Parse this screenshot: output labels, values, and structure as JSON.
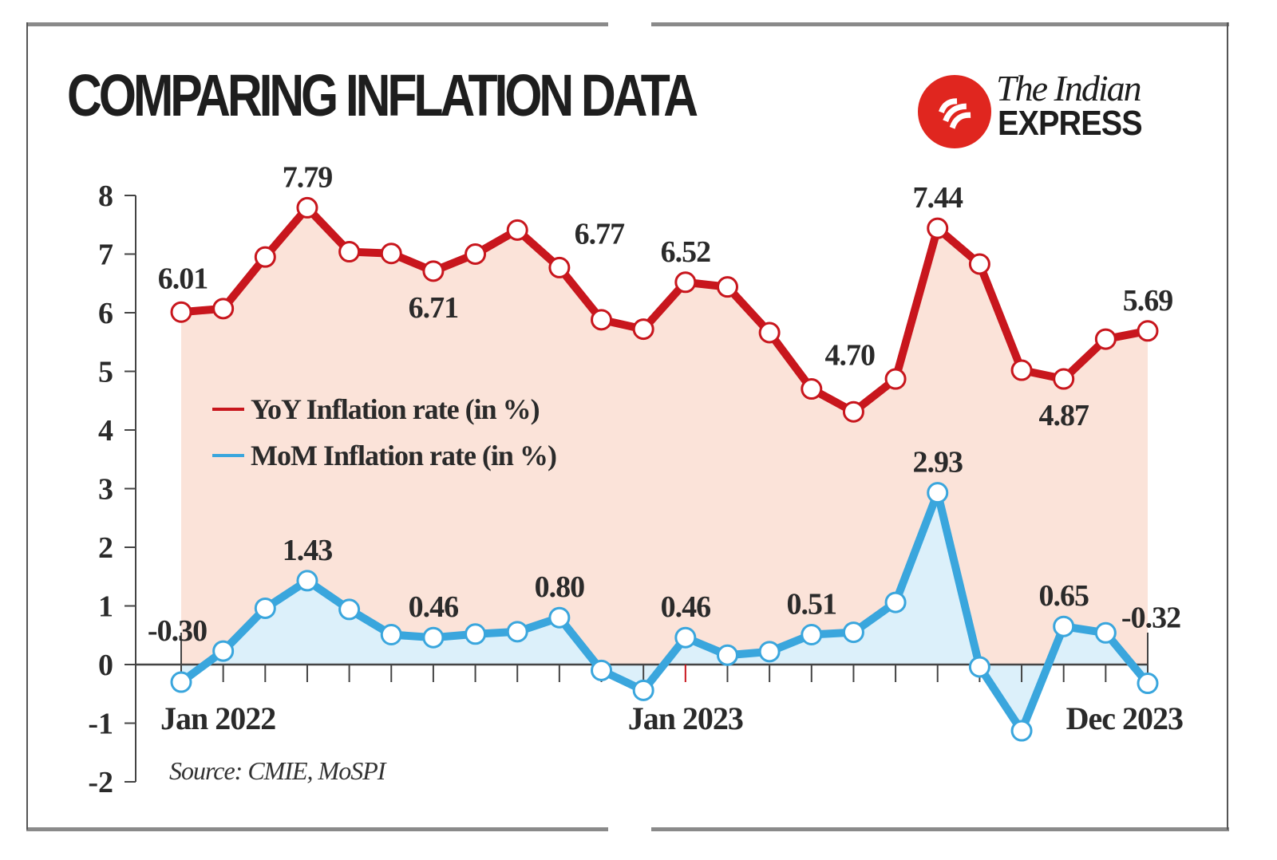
{
  "header": {
    "title": "COMPARING INFLATION DATA",
    "brand_line1": "The Indian",
    "brand_line2": "EXPRESS",
    "brand_icon": "indian-express-logo-icon"
  },
  "footer": {
    "source": "Source: CMIE, MoSPI"
  },
  "colors": {
    "yoy_line": "#c8161d",
    "yoy_fill": "#fbe3d9",
    "mom_line": "#3aa6dd",
    "mom_fill": "#dcf0fa",
    "axis": "#444444",
    "brand_red": "#e0261f"
  },
  "chart_data": {
    "type": "line",
    "title": "COMPARING INFLATION DATA",
    "xlabel": "",
    "ylabel": "",
    "ylim": [
      -2,
      8
    ],
    "yticks": [
      8,
      7,
      6,
      5,
      4,
      3,
      2,
      1,
      0,
      -1,
      -2
    ],
    "grid": false,
    "legend_position": "center-left",
    "x": [
      "Jan 2022",
      "Feb 2022",
      "Mar 2022",
      "Apr 2022",
      "May 2022",
      "Jun 2022",
      "Jul 2022",
      "Aug 2022",
      "Sep 2022",
      "Oct 2022",
      "Nov 2022",
      "Dec 2022",
      "Jan 2023",
      "Feb 2023",
      "Mar 2023",
      "Apr 2023",
      "May 2023",
      "Jun 2023",
      "Jul 2023",
      "Aug 2023",
      "Sep 2023",
      "Oct 2023",
      "Nov 2023",
      "Dec 2023"
    ],
    "x_tick_labels": [
      {
        "index": 0,
        "label": "Jan 2022"
      },
      {
        "index": 12,
        "label": "Jan 2023"
      },
      {
        "index": 23,
        "label": "Dec 2023"
      }
    ],
    "series": [
      {
        "name": "YoY Inflation rate (in %)",
        "values": [
          6.01,
          6.07,
          6.95,
          7.79,
          7.04,
          7.01,
          6.71,
          7.0,
          7.41,
          6.77,
          5.88,
          5.72,
          6.52,
          6.44,
          5.66,
          4.7,
          4.31,
          4.87,
          7.44,
          6.83,
          5.02,
          4.87,
          5.55,
          5.69
        ],
        "labels": [
          {
            "index": 0,
            "text": "6.01",
            "pos": "above"
          },
          {
            "index": 3,
            "text": "7.79",
            "pos": "above"
          },
          {
            "index": 6,
            "text": "6.71",
            "pos": "below"
          },
          {
            "index": 9,
            "text": "6.77",
            "pos": "above-right"
          },
          {
            "index": 12,
            "text": "6.52",
            "pos": "above"
          },
          {
            "index": 15,
            "text": "4.70",
            "pos": "above-right"
          },
          {
            "index": 18,
            "text": "7.44",
            "pos": "above"
          },
          {
            "index": 21,
            "text": "4.87",
            "pos": "below"
          },
          {
            "index": 23,
            "text": "5.69",
            "pos": "above"
          }
        ]
      },
      {
        "name": "MoM Inflation rate (in %)",
        "values": [
          -0.3,
          0.23,
          0.96,
          1.43,
          0.94,
          0.51,
          0.46,
          0.52,
          0.56,
          0.8,
          -0.1,
          -0.44,
          0.46,
          0.16,
          0.22,
          0.51,
          0.55,
          1.06,
          2.93,
          -0.04,
          -1.13,
          0.65,
          0.54,
          -0.32
        ],
        "labels": [
          {
            "index": 0,
            "text": "-0.30",
            "pos": "above"
          },
          {
            "index": 3,
            "text": "1.43",
            "pos": "above"
          },
          {
            "index": 6,
            "text": "0.46",
            "pos": "above"
          },
          {
            "index": 9,
            "text": "0.80",
            "pos": "above"
          },
          {
            "index": 12,
            "text": "0.46",
            "pos": "above"
          },
          {
            "index": 15,
            "text": "0.51",
            "pos": "above"
          },
          {
            "index": 18,
            "text": "2.93",
            "pos": "above"
          },
          {
            "index": 21,
            "text": "0.65",
            "pos": "above"
          },
          {
            "index": 23,
            "text": "-0.32",
            "pos": "above"
          }
        ]
      }
    ]
  }
}
